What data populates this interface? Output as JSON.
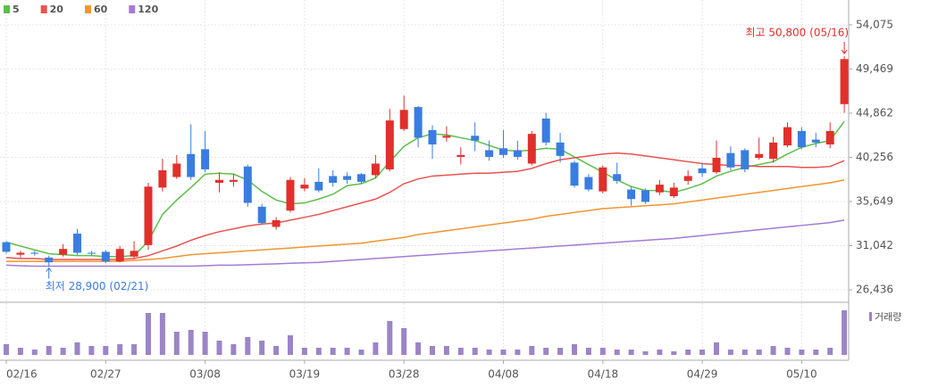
{
  "chart_data": {
    "type": "candlestick",
    "categories": [
      "02/16",
      null,
      null,
      null,
      null,
      null,
      null,
      "02/27",
      null,
      null,
      null,
      null,
      null,
      null,
      "03/08",
      null,
      null,
      null,
      null,
      null,
      null,
      "03/19",
      null,
      null,
      null,
      null,
      null,
      null,
      "03/28",
      null,
      null,
      null,
      null,
      null,
      null,
      "04/08",
      null,
      null,
      null,
      null,
      null,
      null,
      "04/18",
      null,
      null,
      null,
      null,
      null,
      null,
      "04/29",
      null,
      null,
      null,
      null,
      null,
      null,
      "05/10",
      null,
      null,
      null
    ],
    "open": [
      31400,
      30100,
      30300,
      29800,
      30100,
      32300,
      30300,
      30400,
      29400,
      29900,
      31100,
      37100,
      38200,
      40600,
      41100,
      37600,
      37700,
      39300,
      35100,
      33000,
      34700,
      37000,
      37700,
      38300,
      38300,
      38500,
      38400,
      39000,
      43200,
      45500,
      43100,
      42300,
      40300,
      42500,
      41000,
      41200,
      41000,
      39600,
      44300,
      41800,
      39700,
      38200,
      36700,
      38500,
      36900,
      36800,
      36600,
      36200,
      37800,
      39100,
      38700,
      40700,
      41000,
      40200,
      40100,
      41500,
      43000,
      42100,
      41600,
      45800
    ],
    "high": [
      31500,
      30500,
      30500,
      30000,
      31200,
      32800,
      30500,
      30600,
      31000,
      31500,
      37600,
      40100,
      40500,
      43700,
      43000,
      38700,
      38500,
      39500,
      35400,
      34000,
      38200,
      38100,
      39100,
      38900,
      38700,
      38600,
      40500,
      45300,
      46700,
      45600,
      43600,
      43500,
      41300,
      43900,
      42000,
      43100,
      42000,
      43000,
      44900,
      42800,
      39900,
      38500,
      39400,
      39700,
      37200,
      37000,
      37900,
      37600,
      38900,
      39700,
      42000,
      41400,
      41200,
      42300,
      42400,
      43900,
      43400,
      42800,
      43900,
      50800
    ],
    "low": [
      30200,
      29800,
      30000,
      28900,
      29900,
      30100,
      30000,
      29200,
      29300,
      29700,
      30600,
      36700,
      38000,
      37900,
      38700,
      36600,
      37200,
      35100,
      33200,
      32700,
      34500,
      36700,
      36600,
      37200,
      37500,
      37500,
      38100,
      38800,
      43000,
      41300,
      40100,
      41900,
      39500,
      40900,
      39900,
      40200,
      40000,
      39400,
      41500,
      39700,
      37100,
      36700,
      36500,
      37500,
      35200,
      35400,
      36300,
      36000,
      37400,
      38200,
      38500,
      38900,
      38700,
      40000,
      39700,
      41300,
      41100,
      41300,
      41200,
      44900
    ],
    "close": [
      30400,
      30300,
      30200,
      29300,
      30700,
      30300,
      30200,
      29400,
      30700,
      30500,
      37200,
      38900,
      39600,
      38200,
      39000,
      37900,
      37900,
      35500,
      33400,
      33700,
      37900,
      37400,
      36800,
      37600,
      37900,
      37700,
      39600,
      44100,
      45200,
      42300,
      41600,
      42500,
      40500,
      42000,
      40300,
      40500,
      40300,
      42700,
      41800,
      40400,
      37300,
      36900,
      39200,
      37800,
      35900,
      35600,
      37400,
      37100,
      38300,
      38600,
      40200,
      39200,
      39000,
      40600,
      41800,
      43400,
      41300,
      41800,
      43000,
      50500
    ],
    "up_color": "#e0302c",
    "down_color": "#3a7de0",
    "series": [
      {
        "name": "5",
        "color": "#5cbf4a",
        "values": [
          31400,
          31000,
          30600,
          30200,
          30100,
          30000,
          30000,
          29900,
          29900,
          30000,
          31500,
          34300,
          35800,
          37100,
          38500,
          38600,
          38500,
          37900,
          36700,
          35800,
          35400,
          35500,
          35900,
          36400,
          37300,
          37500,
          38100,
          39800,
          41400,
          42300,
          42700,
          42600,
          42300,
          42000,
          41500,
          41000,
          40900,
          41000,
          41200,
          41100,
          40300,
          39500,
          38700,
          37900,
          37200,
          36800,
          36800,
          36600,
          37000,
          37500,
          38300,
          38800,
          39200,
          39500,
          39800,
          40600,
          41300,
          41700,
          42000,
          44000
        ]
      },
      {
        "name": "20",
        "color": "#e8534f",
        "values": [
          29800,
          29700,
          29700,
          29600,
          29600,
          29600,
          29600,
          29600,
          29600,
          29700,
          30000,
          30500,
          31000,
          31600,
          32100,
          32500,
          32800,
          33100,
          33300,
          33400,
          33700,
          34000,
          34300,
          34700,
          35100,
          35500,
          35900,
          36600,
          37500,
          38000,
          38300,
          38400,
          38500,
          38600,
          38600,
          38700,
          38800,
          39100,
          39600,
          40000,
          40200,
          40400,
          40600,
          40700,
          40600,
          40400,
          40200,
          40000,
          39800,
          39600,
          39500,
          39400,
          39400,
          39300,
          39300,
          39300,
          39200,
          39200,
          39300,
          39900
        ]
      },
      {
        "name": "60",
        "color": "#f2952f",
        "values": [
          29400,
          29400,
          29400,
          29400,
          29400,
          29400,
          29400,
          29400,
          29400,
          29500,
          29600,
          29700,
          29900,
          30100,
          30200,
          30300,
          30400,
          30500,
          30600,
          30700,
          30800,
          30900,
          31000,
          31100,
          31200,
          31300,
          31500,
          31700,
          31900,
          32200,
          32400,
          32600,
          32800,
          33000,
          33200,
          33400,
          33600,
          33800,
          34100,
          34300,
          34500,
          34700,
          34900,
          35000,
          35100,
          35200,
          35300,
          35400,
          35600,
          35800,
          36000,
          36200,
          36400,
          36600,
          36800,
          37000,
          37200,
          37400,
          37600,
          37900
        ]
      },
      {
        "name": "120",
        "color": "#a57ad6",
        "values": [
          29000,
          28950,
          28900,
          28900,
          28900,
          28900,
          28900,
          28900,
          28900,
          28900,
          28900,
          28900,
          28900,
          28900,
          28950,
          29000,
          29000,
          29050,
          29100,
          29150,
          29200,
          29250,
          29300,
          29400,
          29500,
          29600,
          29700,
          29800,
          29900,
          30000,
          30100,
          30200,
          30300,
          30400,
          30500,
          30600,
          30700,
          30800,
          30900,
          31000,
          31100,
          31200,
          31300,
          31400,
          31500,
          31600,
          31700,
          31800,
          31950,
          32100,
          32250,
          32400,
          32550,
          32700,
          32850,
          33000,
          33150,
          33300,
          33450,
          33700
        ]
      }
    ],
    "volume": {
      "name": "거래량",
      "color": "#9b85c6",
      "ylim": [
        0,
        53
      ],
      "values": [
        12,
        8,
        6,
        10,
        8,
        14,
        10,
        10,
        12,
        12,
        47,
        47,
        26,
        28,
        26,
        16,
        12,
        20,
        16,
        10,
        22,
        8,
        8,
        8,
        8,
        6,
        14,
        38,
        30,
        14,
        10,
        10,
        8,
        8,
        6,
        6,
        6,
        10,
        8,
        8,
        12,
        8,
        8,
        6,
        6,
        4,
        6,
        4,
        6,
        6,
        14,
        6,
        6,
        6,
        10,
        8,
        6,
        6,
        8,
        50
      ]
    },
    "ylim": [
      25320,
      54990
    ],
    "yticks": [
      {
        "value": 54075,
        "label": "54,075"
      },
      {
        "value": 49469,
        "label": "49,469"
      },
      {
        "value": 44862,
        "label": "44,862"
      },
      {
        "value": 40256,
        "label": "40,256"
      },
      {
        "value": 35649,
        "label": "35,649"
      },
      {
        "value": 31042,
        "label": "31,042"
      },
      {
        "value": 26436,
        "label": "26,436"
      }
    ],
    "grid": true,
    "high_annotation": {
      "text": "최고 50,800 (05/16)",
      "color": "#e0302c"
    },
    "low_annotation": {
      "text": "최저 28,900 (02/21)",
      "color": "#3a7de0"
    }
  }
}
